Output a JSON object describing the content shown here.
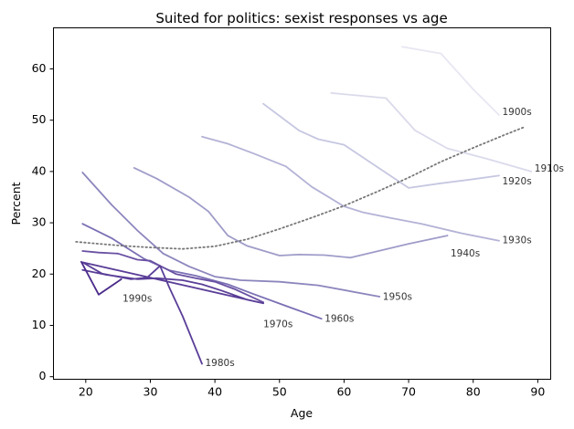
{
  "chart_data": {
    "type": "line",
    "title": "Suited for politics: sexist responses vs age",
    "xlabel": "Age",
    "ylabel": "Percent",
    "xlim": [
      15,
      92
    ],
    "ylim": [
      -0.5,
      68
    ],
    "xticks": [
      20,
      30,
      40,
      50,
      60,
      70,
      80,
      90
    ],
    "yticks": [
      0,
      10,
      20,
      30,
      40,
      50,
      60
    ],
    "grid": false,
    "series": [
      {
        "name": "1900s",
        "color": "#e8e6f2",
        "label_at": [
          84.5,
          51.5
        ],
        "points": [
          [
            69,
            64.3
          ],
          [
            75,
            63
          ],
          [
            80,
            56
          ],
          [
            84,
            51
          ]
        ]
      },
      {
        "name": "1910s",
        "color": "#dadaeb",
        "label_at": [
          89.5,
          40.5
        ],
        "points": [
          [
            58,
            55.3
          ],
          [
            66.5,
            54.3
          ],
          [
            71,
            48
          ],
          [
            76,
            44.5
          ],
          [
            82,
            42.5
          ],
          [
            89,
            40
          ]
        ]
      },
      {
        "name": "1920s",
        "color": "#c6c7e1",
        "label_at": [
          84.5,
          38
        ],
        "points": [
          [
            47.5,
            53.2
          ],
          [
            53,
            48
          ],
          [
            56,
            46.3
          ],
          [
            60,
            45.2
          ],
          [
            65,
            41
          ],
          [
            70,
            36.8
          ],
          [
            75,
            37.7
          ],
          [
            80,
            38.5
          ],
          [
            84,
            39.2
          ]
        ]
      },
      {
        "name": "1930s",
        "color": "#b3b2d6",
        "label_at": [
          84.5,
          26.5
        ],
        "points": [
          [
            38,
            46.8
          ],
          [
            42,
            45.4
          ],
          [
            46,
            43.5
          ],
          [
            51,
            41
          ],
          [
            55,
            37
          ],
          [
            60,
            33.2
          ],
          [
            63,
            32
          ],
          [
            67,
            31
          ],
          [
            72,
            29.8
          ],
          [
            78,
            28
          ],
          [
            84,
            26.5
          ]
        ]
      },
      {
        "name": "1940s",
        "color": "#9f9cc9",
        "label_at": [
          76.5,
          24
        ],
        "points": [
          [
            27.5,
            40.7
          ],
          [
            31,
            38.6
          ],
          [
            36,
            35
          ],
          [
            39,
            32.2
          ],
          [
            42,
            27.5
          ],
          [
            45,
            25.5
          ],
          [
            50,
            23.6
          ],
          [
            53,
            23.8
          ],
          [
            57,
            23.7
          ],
          [
            61,
            23.2
          ],
          [
            66,
            24.7
          ],
          [
            70,
            25.9
          ],
          [
            76,
            27.5
          ]
        ]
      },
      {
        "name": "1950s",
        "color": "#8c86bd",
        "label_at": [
          66,
          15.5
        ],
        "points": [
          [
            19.5,
            39.8
          ],
          [
            24,
            33.5
          ],
          [
            28,
            28.5
          ],
          [
            32,
            24
          ],
          [
            36,
            21.5
          ],
          [
            40,
            19.5
          ],
          [
            44,
            18.8
          ],
          [
            50,
            18.5
          ],
          [
            56,
            17.8
          ],
          [
            65.5,
            15.6
          ]
        ]
      },
      {
        "name": "1960s",
        "color": "#7a6fb4",
        "label_at": [
          57,
          11.2
        ],
        "points": [
          [
            19.5,
            29.8
          ],
          [
            24,
            27
          ],
          [
            29,
            23
          ],
          [
            33,
            20.7
          ],
          [
            37,
            19.7
          ],
          [
            42,
            18
          ],
          [
            46,
            16.1
          ],
          [
            51,
            13.8
          ],
          [
            56.5,
            11.3
          ]
        ]
      },
      {
        "name": "1970s",
        "color": "#6950a3",
        "label_at": [
          47.5,
          10.2
        ],
        "points": [
          [
            19.5,
            24.5
          ],
          [
            22,
            24.2
          ],
          [
            25,
            24
          ],
          [
            28,
            22.8
          ],
          [
            30,
            22.6
          ],
          [
            32,
            21.3
          ],
          [
            34,
            20
          ],
          [
            37,
            19.2
          ],
          [
            40,
            18.5
          ],
          [
            43,
            17.1
          ],
          [
            47.5,
            14.5
          ]
        ]
      },
      {
        "name": "1980s",
        "color": "#5a3e98",
        "label_at": [
          38.5,
          2.6
        ],
        "points": [
          [
            19.5,
            20.8
          ],
          [
            23,
            19.9
          ],
          [
            28,
            19
          ],
          [
            31,
            19.2
          ],
          [
            35,
            18.8
          ],
          [
            38,
            18
          ],
          [
            41,
            16.8
          ],
          [
            43,
            15.9
          ],
          [
            45,
            15
          ],
          [
            47.5,
            14.3
          ],
          [
            47.5,
            14.3
          ],
          [
            19.5,
            22.3
          ],
          [
            19.5,
            22.3
          ],
          [
            22.5,
            20.1
          ],
          [
            27,
            19
          ],
          [
            29.5,
            19.3
          ],
          [
            31.5,
            21.6
          ],
          [
            33,
            17.2
          ],
          [
            35,
            11.8
          ],
          [
            38,
            2.5
          ]
        ]
      },
      {
        "name": "1990s",
        "color": "#4a2a8a",
        "label_at": [
          25.7,
          15.2
        ],
        "points": [
          [
            19.3,
            22.4
          ],
          [
            22,
            16
          ],
          [
            25.5,
            19
          ]
        ]
      }
    ],
    "trend": {
      "name": "trend",
      "color": "#777777",
      "style": "dotted",
      "points": [
        [
          18.5,
          26.3
        ],
        [
          22,
          25.9
        ],
        [
          26,
          25.5
        ],
        [
          30,
          25.2
        ],
        [
          35,
          24.9
        ],
        [
          40,
          25.4
        ],
        [
          45,
          26.8
        ],
        [
          50,
          28.8
        ],
        [
          55,
          31.0
        ],
        [
          60,
          33.3
        ],
        [
          65,
          36.0
        ],
        [
          70,
          38.8
        ],
        [
          75,
          41.9
        ],
        [
          80,
          44.6
        ],
        [
          85,
          47.2
        ],
        [
          88,
          48.7
        ]
      ]
    }
  }
}
